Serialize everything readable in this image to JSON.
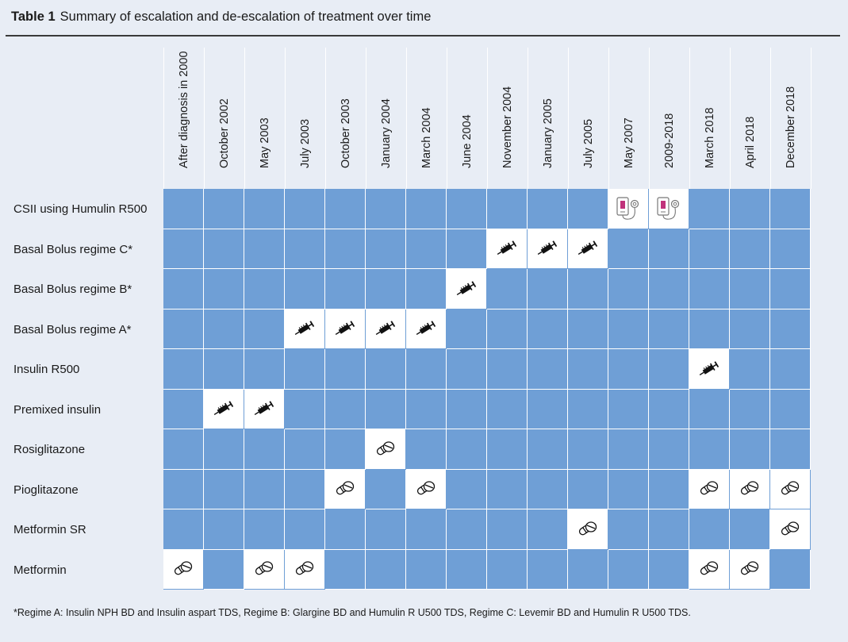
{
  "title": {
    "number": "Table 1",
    "text": "Summary of escalation and de-escalation of treatment over time"
  },
  "columns": [
    "After diagnosis in 2000",
    "October 2002",
    "May 2003",
    "July 2003",
    "October 2003",
    "January 2004",
    "March 2004",
    "June 2004",
    "November 2004",
    "January 2005",
    "July 2005",
    "May 2007",
    "2009-2018",
    "March 2018",
    "April 2018",
    "December 2018"
  ],
  "rows": [
    {
      "label": "CSII using Humulin R500",
      "icon": "pump-icon",
      "active": [
        11,
        12
      ]
    },
    {
      "label": "Basal Bolus regime C*",
      "icon": "syringe-icon",
      "active": [
        8,
        9,
        10
      ]
    },
    {
      "label": "Basal Bolus regime B*",
      "icon": "syringe-icon",
      "active": [
        7
      ]
    },
    {
      "label": "Basal Bolus regime A*",
      "icon": "syringe-icon",
      "active": [
        3,
        4,
        5,
        6
      ]
    },
    {
      "label": "Insulin R500",
      "icon": "syringe-icon",
      "active": [
        13
      ]
    },
    {
      "label": "Premixed insulin",
      "icon": "syringe-icon",
      "active": [
        1,
        2
      ]
    },
    {
      "label": "Rosiglitazone",
      "icon": "pill-icon",
      "active": [
        5
      ]
    },
    {
      "label": "Pioglitazone",
      "icon": "pill-icon",
      "active": [
        4,
        6,
        13,
        14,
        15
      ]
    },
    {
      "label": "Metformin SR",
      "icon": "pill-icon",
      "active": [
        10,
        15
      ]
    },
    {
      "label": "Metformin",
      "icon": "pill-icon",
      "active": [
        0,
        2,
        3,
        13,
        14
      ]
    }
  ],
  "colors": {
    "cell_fill": "#6f9fd6",
    "active_fill": "#ffffff",
    "pump_accent": "#c0327a"
  },
  "footnote": "*Regime A: Insulin NPH BD and Insulin aspart TDS, Regime B:  Glargine BD and Humulin R U500 TDS, Regime C:  Levemir BD and Humulin R U500 TDS."
}
